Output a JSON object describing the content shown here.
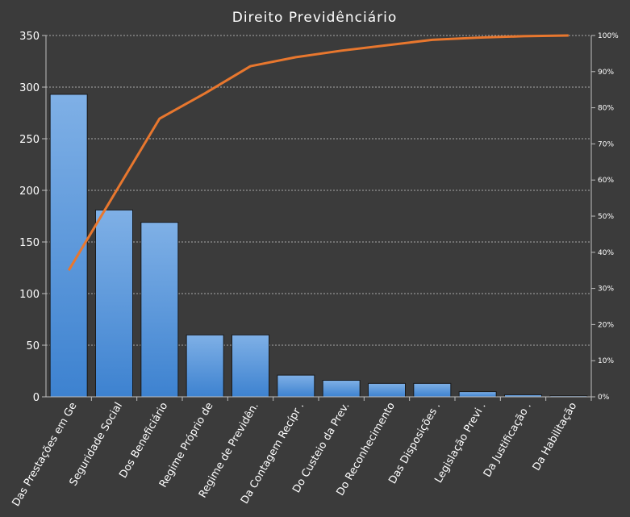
{
  "chart_data": {
    "type": "bar",
    "title": "Direito Previdênciário",
    "xlabel": "",
    "ylabel": "",
    "ylim": [
      0,
      350
    ],
    "y2lim": [
      0,
      100
    ],
    "yticks": [
      "0",
      "50",
      "100",
      "150",
      "200",
      "250",
      "300",
      "350"
    ],
    "y2ticks": [
      "0%",
      "10%",
      "20%",
      "30%",
      "40%",
      "50%",
      "60%",
      "70%",
      "80%",
      "90%",
      "100%"
    ],
    "grid": true,
    "categories": [
      "Das Prestações em Ge",
      "Seguridade Social",
      "Dos Beneficiário",
      "Regime Próprio de",
      "Regime de Previdên.",
      "Da Contagem Recípr .",
      "Do Custeio da Prev.",
      "Do Reconhecimento",
      "Das Disposições .",
      "Legislação Previ .",
      "Da Justificação .",
      "Da Habilitação"
    ],
    "series": [
      {
        "type": "bar",
        "values": [
          293,
          181,
          169,
          60,
          60,
          21,
          16,
          13,
          13,
          5,
          2,
          1
        ],
        "color": "#4a90d9"
      },
      {
        "type": "line",
        "axis": "secondary",
        "values": [
          35,
          56,
          77,
          84,
          91.5,
          94,
          95.8,
          97.3,
          98.8,
          99.4,
          99.8,
          100
        ],
        "color": "#e8772e"
      }
    ]
  }
}
